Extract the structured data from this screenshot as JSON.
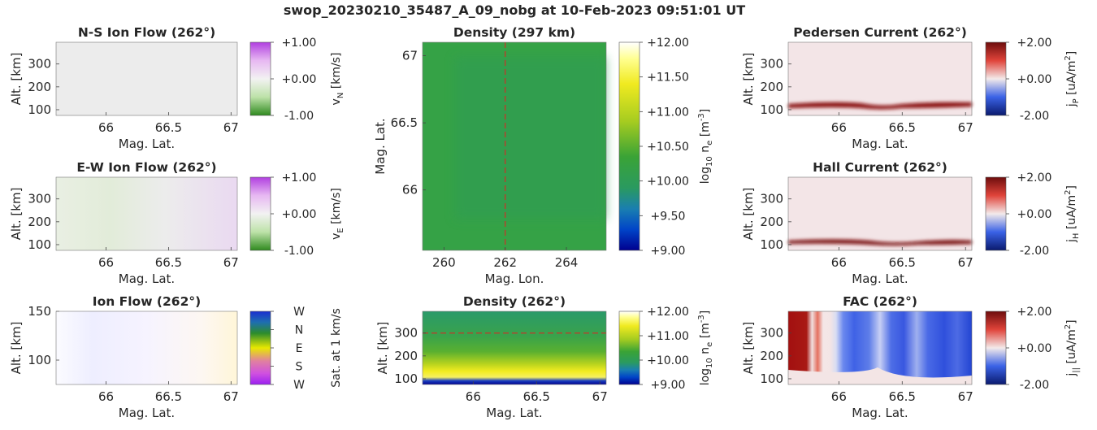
{
  "figure": {
    "title": "swop_20230210_35487_A_09_nobg at 10-Feb-2023 09:51:01 UT"
  },
  "colors": {
    "density_map": [
      "#00008f",
      "#0044c8",
      "#1a7fb0",
      "#2a9a60",
      "#3aa336",
      "#a6cc20",
      "#f0ea20",
      "#ffff90",
      "#ffffff"
    ],
    "diverging_green_purple": [
      "#2f8a1f",
      "#bde2a8",
      "#f2f2f2",
      "#e7b8f2",
      "#b13fe0"
    ],
    "diverging_blue_red": [
      "#0a1a6e",
      "#3a62e6",
      "#f3eaea",
      "#e0443a",
      "#6d0d0d"
    ],
    "direction_map": [
      "#1a2fd0",
      "#2c8c2c",
      "#e8e800",
      "#e080a0",
      "#9a20f0"
    ],
    "reference_line": "#c0392b"
  },
  "chart_data": [
    {
      "type": "heatmap",
      "title": "N-S Ion Flow (262°)",
      "xlabel": "Mag. Lat.",
      "ylabel": "Alt. [km]",
      "xlim": [
        65.6,
        67.05
      ],
      "ylim": [
        75,
        395
      ],
      "xticks": [
        "66",
        "66.5",
        "67"
      ],
      "yticks": [
        "100",
        "200",
        "300"
      ],
      "colorbar": {
        "ticks": [
          "+1.00",
          "+0.00",
          "-1.00"
        ],
        "range": [
          -1,
          1
        ],
        "label": "v",
        "sub": "N",
        "unit": " [km/s]"
      },
      "field_description": "near-zero everywhere",
      "values": [
        [
          0.0,
          0.0,
          0.0
        ],
        [
          0.0,
          0.0,
          -0.02
        ]
      ]
    },
    {
      "type": "heatmap",
      "title": "E-W Ion Flow (262°)",
      "xlabel": "Mag. Lat.",
      "ylabel": "Alt. [km]",
      "xlim": [
        65.6,
        67.05
      ],
      "ylim": [
        75,
        395
      ],
      "xticks": [
        "66",
        "66.5",
        "67"
      ],
      "yticks": [
        "100",
        "200",
        "300"
      ],
      "colorbar": {
        "ticks": [
          "+1.00",
          "+0.00",
          "-1.00"
        ],
        "range": [
          -1,
          1
        ],
        "label": "v",
        "sub": "E",
        "unit": " [km/s]"
      },
      "values": [
        [
          -0.05,
          -0.1,
          -0.05,
          0.0,
          0.05,
          0.1
        ]
      ]
    },
    {
      "type": "heatmap",
      "title": "Ion Flow (262°)",
      "xlabel": "Mag. Lat.",
      "ylabel": "Alt. [km]",
      "xlim": [
        65.6,
        67.05
      ],
      "ylim": [
        75,
        150
      ],
      "xticks": [
        "66",
        "66.5",
        "67"
      ],
      "yticks": [
        "100",
        "150"
      ],
      "colorbar": {
        "ticks": [
          "W",
          "N",
          "E",
          "S",
          "W"
        ],
        "label": "Sat. at 1 km/s"
      }
    },
    {
      "type": "heatmap",
      "title": "Density (297 km)",
      "xlabel": "Mag. Lon.",
      "ylabel": "Mag. Lat.",
      "xlim": [
        259.3,
        265.3
      ],
      "ylim": [
        65.55,
        67.1
      ],
      "xticks": [
        "260",
        "262",
        "264"
      ],
      "yticks": [
        "66",
        "66.5",
        "67"
      ],
      "reference_line": {
        "axis": "x",
        "value": 262
      },
      "colorbar": {
        "ticks": [
          "+12.00",
          "+11.50",
          "+11.00",
          "+10.50",
          "+10.00",
          "+9.50",
          "+9.00"
        ],
        "range": [
          9,
          12
        ],
        "label": "log",
        "sub": "10",
        "mid": " n",
        "sub2": "e",
        "unit": " [m",
        "sup": "-3",
        "close": "]"
      },
      "values_log10_ne": [
        10.35,
        10.3
      ]
    },
    {
      "type": "heatmap",
      "title": "Density (262°)",
      "xlabel": "Mag. Lat.",
      "ylabel": "Alt. [km]",
      "xlim": [
        65.6,
        67.05
      ],
      "ylim": [
        75,
        395
      ],
      "xticks": [
        "66",
        "66.5",
        "67"
      ],
      "yticks": [
        "100",
        "200",
        "300"
      ],
      "reference_line": {
        "axis": "y",
        "value": 300
      },
      "colorbar": {
        "ticks": [
          "+12.00",
          "+11.00",
          "+10.00",
          "+9.00"
        ],
        "range": [
          9,
          12
        ],
        "label": "log",
        "sub": "10",
        "mid": " n",
        "sub2": "e",
        "unit": " [m",
        "sup": "-3",
        "close": "]"
      }
    },
    {
      "type": "heatmap",
      "title": "Pedersen Current (262°)",
      "xlabel": "Mag. Lat.",
      "ylabel": "Alt. [km]",
      "xlim": [
        65.6,
        67.05
      ],
      "ylim": [
        75,
        395
      ],
      "xticks": [
        "66",
        "66.5",
        "67"
      ],
      "yticks": [
        "100",
        "200",
        "300"
      ],
      "colorbar": {
        "ticks": [
          "+2.00",
          "+0.00",
          "-2.00"
        ],
        "range": [
          -2,
          2
        ],
        "label": "j",
        "sub": "P",
        "unit": " [uA/m",
        "sup": "2",
        "close": "]"
      }
    },
    {
      "type": "heatmap",
      "title": "Hall Current (262°)",
      "xlabel": "Mag. Lat.",
      "ylabel": "Alt. [km]",
      "xlim": [
        65.6,
        67.05
      ],
      "ylim": [
        75,
        395
      ],
      "xticks": [
        "66",
        "66.5",
        "67"
      ],
      "yticks": [
        "100",
        "200",
        "300"
      ],
      "colorbar": {
        "ticks": [
          "+2.00",
          "+0.00",
          "-2.00"
        ],
        "range": [
          -2,
          2
        ],
        "label": "j",
        "sub": "H",
        "unit": " [uA/m",
        "sup": "2",
        "close": "]"
      }
    },
    {
      "type": "heatmap",
      "title": "FAC (262°)",
      "xlabel": "Mag. Lat.",
      "ylabel": "Alt. [km]",
      "xlim": [
        65.6,
        67.05
      ],
      "ylim": [
        75,
        395
      ],
      "xticks": [
        "66",
        "66.5",
        "67"
      ],
      "yticks": [
        "100",
        "200",
        "300"
      ],
      "colorbar": {
        "ticks": [
          "+2.00",
          "+0.00",
          "-2.00"
        ],
        "range": [
          -2,
          2
        ],
        "label": "j",
        "sub": "||",
        "unit": " [uA/m",
        "sup": "2",
        "close": "]"
      }
    }
  ]
}
